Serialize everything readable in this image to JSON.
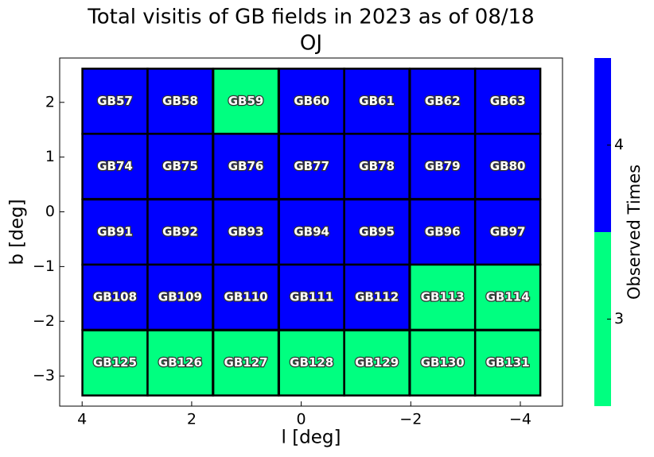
{
  "chart_data": {
    "type": "heatmap",
    "title": "Total visitis of GB fields in 2023 as of 08/18",
    "subtitle": "OJ",
    "x_label": "l [deg]",
    "y_label": "b [deg]",
    "xlim": [
      4.41,
      -4.77
    ],
    "ylim": [
      -3.55,
      2.81
    ],
    "xticks": [
      4,
      2,
      0,
      {
        "value": -2,
        "label": "−2"
      },
      {
        "value": -4,
        "label": "−4"
      }
    ],
    "yticks": [
      2,
      1,
      0,
      {
        "value": -1,
        "label": "−1"
      },
      {
        "value": -2,
        "label": "−2"
      },
      {
        "value": -3,
        "label": "−3"
      }
    ],
    "cell_size": 1.19,
    "fields": [
      {
        "name": "GB57",
        "l": 3.4,
        "b": 2.02,
        "value": 4
      },
      {
        "name": "GB58",
        "l": 2.21,
        "b": 2.02,
        "value": 4
      },
      {
        "name": "GB59",
        "l": 1.01,
        "b": 2.02,
        "value": 3
      },
      {
        "name": "GB60",
        "l": -0.19,
        "b": 2.02,
        "value": 4
      },
      {
        "name": "GB61",
        "l": -1.38,
        "b": 2.02,
        "value": 4
      },
      {
        "name": "GB62",
        "l": -2.58,
        "b": 2.02,
        "value": 4
      },
      {
        "name": "GB63",
        "l": -3.77,
        "b": 2.02,
        "value": 4
      },
      {
        "name": "GB74",
        "l": 3.4,
        "b": 0.83,
        "value": 4
      },
      {
        "name": "GB75",
        "l": 2.21,
        "b": 0.83,
        "value": 4
      },
      {
        "name": "GB76",
        "l": 1.01,
        "b": 0.83,
        "value": 4
      },
      {
        "name": "GB77",
        "l": -0.19,
        "b": 0.83,
        "value": 4
      },
      {
        "name": "GB78",
        "l": -1.38,
        "b": 0.83,
        "value": 4
      },
      {
        "name": "GB79",
        "l": -2.58,
        "b": 0.83,
        "value": 4
      },
      {
        "name": "GB80",
        "l": -3.77,
        "b": 0.83,
        "value": 4
      },
      {
        "name": "GB91",
        "l": 3.4,
        "b": -0.37,
        "value": 4
      },
      {
        "name": "GB92",
        "l": 2.21,
        "b": -0.37,
        "value": 4
      },
      {
        "name": "GB93",
        "l": 1.01,
        "b": -0.37,
        "value": 4
      },
      {
        "name": "GB94",
        "l": -0.19,
        "b": -0.37,
        "value": 4
      },
      {
        "name": "GB95",
        "l": -1.38,
        "b": -0.37,
        "value": 4
      },
      {
        "name": "GB96",
        "l": -2.58,
        "b": -0.37,
        "value": 4
      },
      {
        "name": "GB97",
        "l": -3.77,
        "b": -0.37,
        "value": 4
      },
      {
        "name": "GB108",
        "l": 3.4,
        "b": -1.56,
        "value": 4
      },
      {
        "name": "GB109",
        "l": 2.21,
        "b": -1.56,
        "value": 4
      },
      {
        "name": "GB110",
        "l": 1.01,
        "b": -1.56,
        "value": 4
      },
      {
        "name": "GB111",
        "l": -0.19,
        "b": -1.56,
        "value": 4
      },
      {
        "name": "GB112",
        "l": -1.38,
        "b": -1.56,
        "value": 4
      },
      {
        "name": "GB113",
        "l": -2.58,
        "b": -1.56,
        "value": 3
      },
      {
        "name": "GB114",
        "l": -3.77,
        "b": -1.56,
        "value": 3
      },
      {
        "name": "GB125",
        "l": 3.4,
        "b": -2.76,
        "value": 3
      },
      {
        "name": "GB126",
        "l": 2.21,
        "b": -2.76,
        "value": 3
      },
      {
        "name": "GB127",
        "l": 1.01,
        "b": -2.76,
        "value": 3
      },
      {
        "name": "GB128",
        "l": -0.19,
        "b": -2.76,
        "value": 3
      },
      {
        "name": "GB129",
        "l": -1.38,
        "b": -2.76,
        "value": 3
      },
      {
        "name": "GB130",
        "l": -2.58,
        "b": -2.76,
        "value": 3
      },
      {
        "name": "GB131",
        "l": -3.77,
        "b": -2.76,
        "value": 3
      }
    ],
    "colorbar": {
      "label": "Observed Times",
      "clim": [
        2.5,
        4.5
      ],
      "ticks": [
        3,
        4
      ],
      "levels": [
        3,
        4
      ],
      "colors": [
        "#00ff80",
        "#0000ff"
      ]
    }
  }
}
